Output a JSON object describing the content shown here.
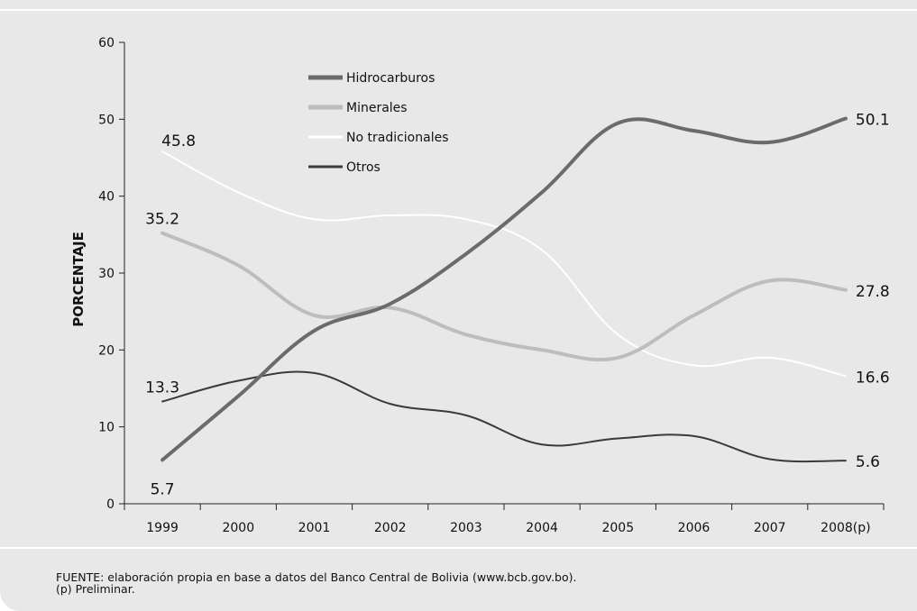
{
  "chart_data": {
    "type": "line",
    "ylabel": "PORCENTAJE",
    "ylim": [
      0,
      60
    ],
    "yticks": [
      0,
      10,
      20,
      30,
      40,
      50,
      60
    ],
    "categories": [
      "1999",
      "2000",
      "2001",
      "2002",
      "2003",
      "2004",
      "2005",
      "2006",
      "2007",
      "2008(p)"
    ],
    "series": [
      {
        "name": "Hidrocarburos",
        "color": "#6b6b6b",
        "width": 4,
        "values": [
          5.7,
          14.0,
          22.5,
          26.0,
          32.5,
          40.5,
          49.5,
          48.5,
          47.0,
          50.1
        ],
        "start_label": "5.7",
        "end_label": "50.1"
      },
      {
        "name": "Minerales",
        "color": "#bdbdbd",
        "width": 4,
        "values": [
          35.2,
          31.0,
          24.5,
          25.5,
          22.0,
          20.0,
          19.0,
          24.5,
          29.0,
          27.8
        ],
        "start_label": "35.2",
        "end_label": "27.8"
      },
      {
        "name": "No tradicionales",
        "color": "#ffffff",
        "width": 2,
        "values": [
          45.8,
          40.5,
          37.0,
          37.5,
          37.0,
          33.0,
          22.0,
          18.0,
          19.0,
          16.6
        ],
        "start_label": "45.8",
        "end_label": "16.6"
      },
      {
        "name": "Otros",
        "color": "#3a3a3a",
        "width": 2,
        "values": [
          13.3,
          16.0,
          17.0,
          13.0,
          11.5,
          7.7,
          8.5,
          8.8,
          5.8,
          5.6
        ],
        "start_label": "13.3",
        "end_label": "5.6"
      }
    ],
    "legend_placement": "top-center"
  },
  "footer": {
    "source": "FUENTE: elaboración propia en base a datos del Banco Central de Bolivia (www.bcb.gov.bo).",
    "note": "(p) Preliminar."
  }
}
